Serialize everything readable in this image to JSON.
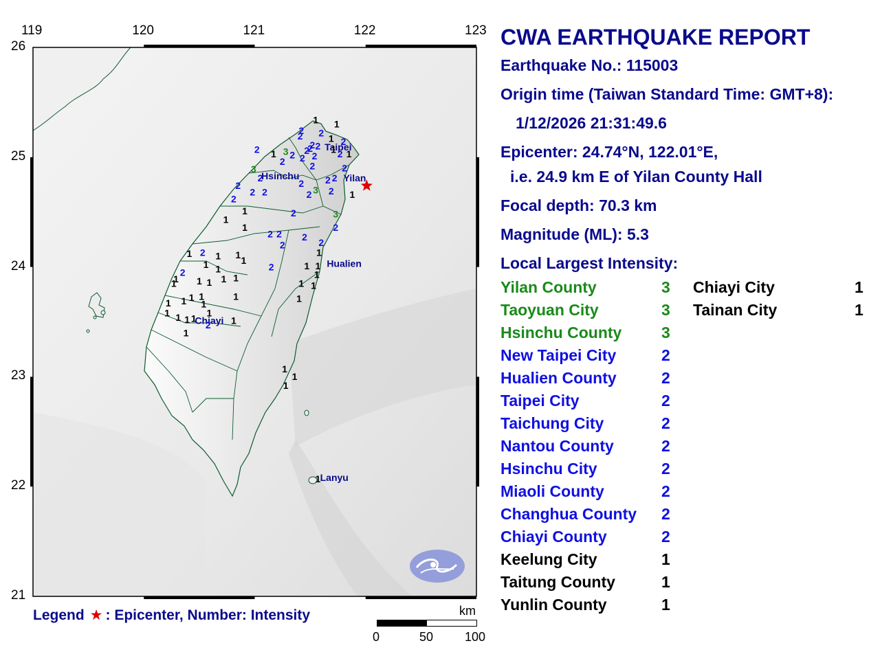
{
  "report": {
    "title": "CWA EARTHQUAKE REPORT",
    "earthquake_no": "Earthquake No.: 115003",
    "origin_label": "Origin time (Taiwan Standard Time: GMT+8):",
    "origin_time": "1/12/2026 21:31:49.6",
    "epicenter": "Epicenter: 24.74°N, 122.01°E,",
    "epicenter_desc": "i.e. 24.9 km E of Yilan County Hall",
    "focal_depth": "Focal depth: 70.3 km",
    "magnitude": "Magnitude (ML): 5.3",
    "intensity_heading": "Local Largest Intensity:"
  },
  "colors": {
    "level3": "#1a8a1a",
    "level2": "#1010e0",
    "level1": "#000000",
    "title": "#0a0a8c",
    "epicenter": "#e00000"
  },
  "intensity_list": [
    {
      "name": "Yilan County",
      "value": "3",
      "level": 3
    },
    {
      "name": "Taoyuan City",
      "value": "3",
      "level": 3
    },
    {
      "name": "Hsinchu County",
      "value": "3",
      "level": 3
    },
    {
      "name": "New Taipei City",
      "value": "2",
      "level": 2
    },
    {
      "name": "Hualien County",
      "value": "2",
      "level": 2
    },
    {
      "name": "Taipei City",
      "value": "2",
      "level": 2
    },
    {
      "name": "Taichung City",
      "value": "2",
      "level": 2
    },
    {
      "name": "Nantou County",
      "value": "2",
      "level": 2
    },
    {
      "name": "Hsinchu City",
      "value": "2",
      "level": 2
    },
    {
      "name": "Miaoli County",
      "value": "2",
      "level": 2
    },
    {
      "name": "Changhua County",
      "value": "2",
      "level": 2
    },
    {
      "name": "Chiayi County",
      "value": "2",
      "level": 2
    },
    {
      "name": "Keelung City",
      "value": "1",
      "level": 1
    },
    {
      "name": "Taitung County",
      "value": "1",
      "level": 1
    },
    {
      "name": "Yunlin County",
      "value": "1",
      "level": 1
    },
    {
      "name": "Chiayi City",
      "value": "1",
      "level": 1
    },
    {
      "name": "Tainan City",
      "value": "1",
      "level": 1
    }
  ],
  "map": {
    "lon_ticks": [
      "119",
      "120",
      "121",
      "122",
      "123"
    ],
    "lat_ticks": [
      "26",
      "25",
      "24",
      "23",
      "22",
      "21"
    ],
    "epicenter": {
      "lon": 122.01,
      "lat": 24.74
    },
    "cities": [
      {
        "name": "Taipei",
        "lon": 121.63,
        "lat": 25.06
      },
      {
        "name": "Hsinchu",
        "lon": 121.06,
        "lat": 24.8
      },
      {
        "name": "Yilan",
        "lon": 121.8,
        "lat": 24.78
      },
      {
        "name": "Hualien",
        "lon": 121.65,
        "lat": 24.0
      },
      {
        "name": "Chiayi",
        "lon": 120.46,
        "lat": 23.48
      },
      {
        "name": "Lanyu",
        "lon": 121.59,
        "lat": 22.05
      }
    ],
    "stations": [
      {
        "v": "1",
        "lon": 121.55,
        "lat": 25.31
      },
      {
        "v": "1",
        "lon": 121.74,
        "lat": 25.27
      },
      {
        "v": "2",
        "lon": 121.42,
        "lat": 25.21
      },
      {
        "v": "2",
        "lon": 121.6,
        "lat": 25.19
      },
      {
        "v": "2",
        "lon": 121.41,
        "lat": 25.16
      },
      {
        "v": "1",
        "lon": 121.69,
        "lat": 25.14
      },
      {
        "v": "2",
        "lon": 121.52,
        "lat": 25.08
      },
      {
        "v": "2",
        "lon": 121.57,
        "lat": 25.07
      },
      {
        "v": "2",
        "lon": 121.5,
        "lat": 25.05
      },
      {
        "v": "2",
        "lon": 121.47,
        "lat": 25.03
      },
      {
        "v": "2",
        "lon": 121.8,
        "lat": 25.11
      },
      {
        "v": "1",
        "lon": 121.71,
        "lat": 25.04
      },
      {
        "v": "2",
        "lon": 121.77,
        "lat": 25.0
      },
      {
        "v": "2",
        "lon": 121.54,
        "lat": 24.98
      },
      {
        "v": "1",
        "lon": 121.85,
        "lat": 25.0
      },
      {
        "v": "2",
        "lon": 121.02,
        "lat": 25.04
      },
      {
        "v": "1",
        "lon": 121.17,
        "lat": 25.0
      },
      {
        "v": "3",
        "lon": 121.28,
        "lat": 25.02
      },
      {
        "v": "2",
        "lon": 121.34,
        "lat": 24.99
      },
      {
        "v": "2",
        "lon": 121.25,
        "lat": 24.93
      },
      {
        "v": "2",
        "lon": 121.43,
        "lat": 24.96
      },
      {
        "v": "2",
        "lon": 121.52,
        "lat": 24.89
      },
      {
        "v": "2",
        "lon": 121.81,
        "lat": 24.87
      },
      {
        "v": "3",
        "lon": 120.99,
        "lat": 24.86
      },
      {
        "v": "2",
        "lon": 121.05,
        "lat": 24.78
      },
      {
        "v": "2",
        "lon": 121.42,
        "lat": 24.73
      },
      {
        "v": "2",
        "lon": 121.66,
        "lat": 24.76
      },
      {
        "v": "2",
        "lon": 121.72,
        "lat": 24.78
      },
      {
        "v": "3",
        "lon": 121.55,
        "lat": 24.67
      },
      {
        "v": "2",
        "lon": 121.49,
        "lat": 24.63
      },
      {
        "v": "2",
        "lon": 121.69,
        "lat": 24.66
      },
      {
        "v": "1",
        "lon": 121.88,
        "lat": 24.63
      },
      {
        "v": "2",
        "lon": 120.85,
        "lat": 24.71
      },
      {
        "v": "2",
        "lon": 120.98,
        "lat": 24.65
      },
      {
        "v": "2",
        "lon": 121.09,
        "lat": 24.65
      },
      {
        "v": "2",
        "lon": 120.81,
        "lat": 24.59
      },
      {
        "v": "1",
        "lon": 120.91,
        "lat": 24.48
      },
      {
        "v": "2",
        "lon": 121.35,
        "lat": 24.46
      },
      {
        "v": "3",
        "lon": 121.73,
        "lat": 24.45
      },
      {
        "v": "1",
        "lon": 120.74,
        "lat": 24.4
      },
      {
        "v": "1",
        "lon": 120.91,
        "lat": 24.33
      },
      {
        "v": "2",
        "lon": 121.73,
        "lat": 24.33
      },
      {
        "v": "2",
        "lon": 121.14,
        "lat": 24.27
      },
      {
        "v": "2",
        "lon": 121.22,
        "lat": 24.27
      },
      {
        "v": "2",
        "lon": 121.45,
        "lat": 24.24
      },
      {
        "v": "2",
        "lon": 121.6,
        "lat": 24.19
      },
      {
        "v": "2",
        "lon": 121.25,
        "lat": 24.17
      },
      {
        "v": "1",
        "lon": 121.58,
        "lat": 24.1
      },
      {
        "v": "1",
        "lon": 120.41,
        "lat": 24.09
      },
      {
        "v": "2",
        "lon": 120.53,
        "lat": 24.1
      },
      {
        "v": "1",
        "lon": 120.67,
        "lat": 24.07
      },
      {
        "v": "1",
        "lon": 120.85,
        "lat": 24.08
      },
      {
        "v": "1",
        "lon": 120.9,
        "lat": 24.03
      },
      {
        "v": "1",
        "lon": 120.56,
        "lat": 23.99
      },
      {
        "v": "1",
        "lon": 120.67,
        "lat": 23.95
      },
      {
        "v": "2",
        "lon": 121.15,
        "lat": 23.97
      },
      {
        "v": "1",
        "lon": 121.47,
        "lat": 23.98
      },
      {
        "v": "1",
        "lon": 121.57,
        "lat": 23.98
      },
      {
        "v": "2",
        "lon": 120.35,
        "lat": 23.92
      },
      {
        "v": "1",
        "lon": 120.29,
        "lat": 23.86
      },
      {
        "v": "1",
        "lon": 120.72,
        "lat": 23.86
      },
      {
        "v": "1",
        "lon": 120.83,
        "lat": 23.87
      },
      {
        "v": "1",
        "lon": 120.59,
        "lat": 23.83
      },
      {
        "v": "1",
        "lon": 121.56,
        "lat": 23.9
      },
      {
        "v": "1",
        "lon": 120.5,
        "lat": 23.84
      },
      {
        "v": "1",
        "lon": 120.27,
        "lat": 23.82
      },
      {
        "v": "1",
        "lon": 121.42,
        "lat": 23.82
      },
      {
        "v": "1",
        "lon": 121.53,
        "lat": 23.8
      },
      {
        "v": "1",
        "lon": 120.43,
        "lat": 23.69
      },
      {
        "v": "1",
        "lon": 120.36,
        "lat": 23.66
      },
      {
        "v": "1",
        "lon": 120.52,
        "lat": 23.7
      },
      {
        "v": "1",
        "lon": 120.22,
        "lat": 23.64
      },
      {
        "v": "1",
        "lon": 120.83,
        "lat": 23.7
      },
      {
        "v": "1",
        "lon": 121.4,
        "lat": 23.68
      },
      {
        "v": "1",
        "lon": 120.54,
        "lat": 23.63
      },
      {
        "v": "1",
        "lon": 120.59,
        "lat": 23.55
      },
      {
        "v": "1",
        "lon": 120.21,
        "lat": 23.55
      },
      {
        "v": "1",
        "lon": 120.31,
        "lat": 23.51
      },
      {
        "v": "1",
        "lon": 120.45,
        "lat": 23.5
      },
      {
        "v": "1",
        "lon": 120.39,
        "lat": 23.49
      },
      {
        "v": "1",
        "lon": 120.81,
        "lat": 23.48
      },
      {
        "v": "2",
        "lon": 120.58,
        "lat": 23.44
      },
      {
        "v": "1",
        "lon": 120.38,
        "lat": 23.37
      },
      {
        "v": "1",
        "lon": 121.27,
        "lat": 23.04
      },
      {
        "v": "1",
        "lon": 121.36,
        "lat": 22.97
      },
      {
        "v": "1",
        "lon": 121.28,
        "lat": 22.89
      },
      {
        "v": "1",
        "lon": 121.57,
        "lat": 22.04
      }
    ]
  },
  "legend": {
    "label": "Legend",
    "star": "★",
    "text": ": Epicenter, Number: Intensity"
  },
  "scalebar": {
    "unit": "km",
    "labels": [
      "0",
      "50",
      "100"
    ]
  },
  "logo": {
    "name": "cwa-logo"
  }
}
